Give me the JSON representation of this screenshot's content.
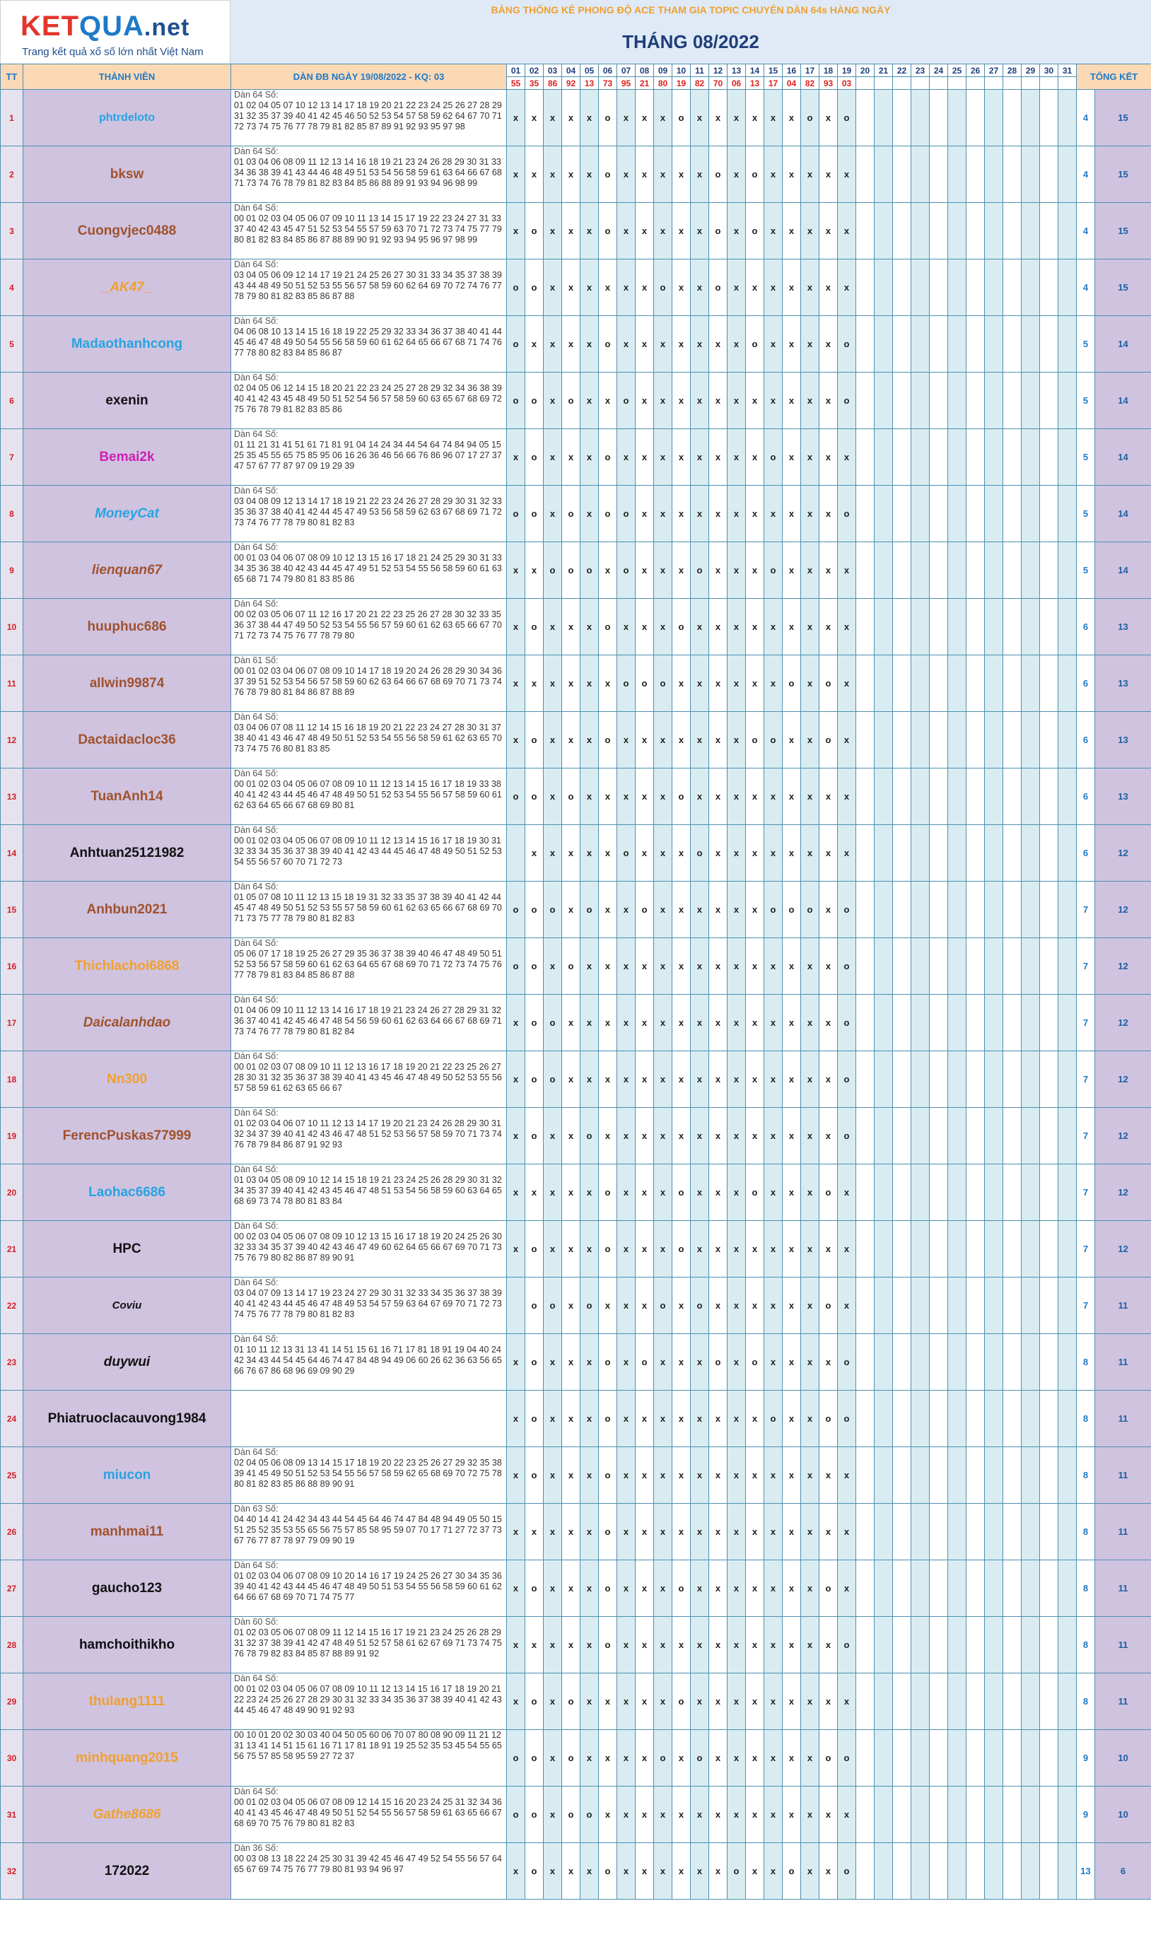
{
  "logo": {
    "brand_k": "KET",
    "brand_rest": "QUA",
    "brand_net": ".net",
    "tagline": "Trang kết quả xổ số lớn nhất Việt Nam"
  },
  "banner": "BẢNG THỐNG KÊ PHONG ĐỘ ACE THAM GIA TOPIC CHUYÊN DÀN 64s HÀNG NGÀY",
  "month_title": "THÁNG 08/2022",
  "headers": {
    "tt": "TT",
    "member": "THÀNH VIÊN",
    "dan": "DÀN ĐB NGÀY 19/08/2022 - KQ: 03",
    "tong_ket": "TỔNG KẾT"
  },
  "days": [
    "01",
    "02",
    "03",
    "04",
    "05",
    "06",
    "07",
    "08",
    "09",
    "10",
    "11",
    "12",
    "13",
    "14",
    "15",
    "16",
    "17",
    "18",
    "19",
    "20",
    "21",
    "22",
    "23",
    "24",
    "25",
    "26",
    "27",
    "28",
    "29",
    "30",
    "31"
  ],
  "results": [
    "55",
    "35",
    "86",
    "92",
    "13",
    "73",
    "95",
    "21",
    "80",
    "19",
    "82",
    "70",
    "06",
    "13",
    "17",
    "04",
    "82",
    "93",
    "03"
  ],
  "rows": [
    {
      "tt": "1",
      "name": "phtrdeloto",
      "color": "#29a3e0",
      "style": "normal",
      "size": "16px",
      "dan_title": "Dàn 64 Số:",
      "dan": "01 02 04 05 07 10 12 13 14 17 18 19 20 21 22 23 24 25 26 27 28 29 31 32 35 37 39 40 41 42 45 46 50 52 53 54 57 58 59 62 64 67 70 71 72 73 74 75 76 77 78 79 81 82 85 87 89 91 92 93 95 97 98",
      "marks": "xxxxxoxxxoxxxxxxoxo",
      "ko": "4",
      "tk": "15"
    },
    {
      "tt": "2",
      "name": "bksw",
      "color": "#a0522d",
      "style": "normal",
      "size": "19px",
      "dan_title": "Dàn 64 Số:",
      "dan": "01 03 04 06 08 09 11 12 13 14 16 18 19 21 23 24 26 28 29 30 31 33 34 36 38 39 41 43 44 46 48 49 51 53 54 56 58 59 61 63 64 66 67 68 71 73 74 76 78 79 81 82 83 84 85 86 88 89 91 93 94 96 98 99",
      "marks": "xxxxxoxxxxxoxoxxxxx",
      "ko": "4",
      "tk": "15"
    },
    {
      "tt": "3",
      "name": "Cuongvjec0488",
      "color": "#a0522d",
      "style": "normal",
      "size": "19px",
      "dan_title": "Dàn 64 Số:",
      "dan": "00 01 02 03 04 05 06 07 09 10 11 13 14 15 17 19 22 23 24 27 31 33 37 40 42 43 45 47 51 52 53 54 55 57 59 63 70 71 72 73 74 75 77 79 80 81 82 83 84 85 86 87 88 89 90 91 92 93 94 95 96 97 98 99",
      "marks": "xoxxxoxxxxxoxoxxxxx",
      "ko": "4",
      "tk": "15"
    },
    {
      "tt": "4",
      "name": "_AK47_",
      "color": "#f0a030",
      "style": "italic",
      "size": "19px",
      "dan_title": "Dàn 64 Số:",
      "dan": "03 04 05 06 09 12 14 17 19 21 24 25 26 27 30 31 33 34 35 37 38 39 43 44 48 49 50 51 52 53 55 56 57 58 59 60 62 64 69 70 72 74 76 77 78 79 80 81 82 83 85 86 87 88",
      "marks": "ooxxxxxxoxxoxxxxxxx",
      "ko": "4",
      "tk": "15"
    },
    {
      "tt": "5",
      "name": "Madaothanhcong",
      "color": "#29a3e0",
      "style": "normal",
      "size": "19px",
      "dan_title": "Dàn 64 Số:",
      "dan": "04 06 08 10 13 14 15 16 18 19 22 25 29 32 33 34 36 37 38 40 41 44 45 46 47 48 49 50 54 55 56 58 59 60 61 62 64 65 66 67 68 71 74 76 77 78 80 82 83 84 85 86 87",
      "marks": "oxxxxoxxxxxxxoxxxxo",
      "ko": "5",
      "tk": "14"
    },
    {
      "tt": "6",
      "name": "exenin",
      "color": "#111111",
      "style": "normal",
      "size": "19px",
      "dan_title": "Dàn 64 Số:",
      "dan": "02 04 05 06 12 14 15 18 20 21 22 23 24 25 27 28 29 32 34 36 38 39 40 41 42 43 45 48 49 50 51 52 54 56 57 58 59 60 63 65 67 68 69 72 75 76 78 79 81 82 83 85 86",
      "marks": "ooxoxxoxxxxxxxxxxxo",
      "ko": "5",
      "tk": "14"
    },
    {
      "tt": "7",
      "name": "Bemai2k",
      "color": "#d020b0",
      "style": "normal",
      "size": "19px",
      "dan_title": "Dàn 64 Số:",
      "dan": "01 11 21 31 41 51 61 71 81 91 04 14 24 34 44 54 64 74 84 94 05 15 25 35 45 55 65 75 85 95 06 16 26 36 46 56 66 76 86 96 07 17 27 37 47 57 67 77 87 97 09 19 29 39",
      "marks": "xoxxxoxxxxxxxxoxxxx",
      "ko": "5",
      "tk": "14"
    },
    {
      "tt": "8",
      "name": "MoneyCat",
      "color": "#29a3e0",
      "style": "italic",
      "size": "19px",
      "dan_title": "Dàn 64 Số:",
      "dan": "03 04 08 09 12 13 14 17 18 19 21 22 23 24 26 27 28 29 30 31 32 33 35 36 37 38 40 41 42 44 45 47 49 53 56 58 59 62 63 67 68 69 71 72 73 74 76 77 78 79 80 81 82 83",
      "marks": "ooxoxooxxxxxxxxxxxo",
      "ko": "5",
      "tk": "14"
    },
    {
      "tt": "9",
      "name": "lienquan67",
      "color": "#a0522d",
      "style": "italic",
      "size": "19px",
      "dan_title": "Dàn 64 Số:",
      "dan": "00 01 03 04 06 07 08 09 10 12 13 15 16 17 18 21 24 25 29 30 31 33 34 35 36 38 40 42 43 44 45 47 49 51 52 53 54 55 56 58 59 60 61 63 65 68 71 74 79 80 81 83 85 86",
      "marks": "xxoooxoxxxoxxxoxxxx",
      "ko": "5",
      "tk": "14"
    },
    {
      "tt": "10",
      "name": "huuphuc686",
      "color": "#a0522d",
      "style": "normal",
      "size": "19px",
      "dan_title": "Dàn 64 Số:",
      "dan": "00 02 03 05 06 07 11 12 16 17 20 21 22 23 25 26 27 28 30 32 33 35 36 37 38 44 47 49 50 52 53 54 55 56 57 59 60 61 62 63 65 66 67 70 71 72 73 74 75 76 77 78 79 80",
      "marks": "xoxxxoxxxoxxxxxxxxx",
      "ko": "6",
      "tk": "13"
    },
    {
      "tt": "11",
      "name": "allwin99874",
      "color": "#a0522d",
      "style": "normal",
      "size": "19px",
      "dan_title": "Dàn 61 Số:",
      "dan": "00 01 02 03 04 06 07 08 09 10 14 17 18 19 20 24 26 28 29 30 34 36 37 39 51 52 53 54 56 57 58 59 60 62 63 64 66 67 68 69 70 71 73 74 76 78 79 80 81 84 86 87 88 89",
      "marks": "xxxxxxoooxxxxxxoxox",
      "ko": "6",
      "tk": "13"
    },
    {
      "tt": "12",
      "name": "Dactaidacloc36",
      "color": "#a0522d",
      "style": "normal",
      "size": "19px",
      "dan_title": "Dàn 64 Số:",
      "dan": "03 04 06 07 08 11 12 14 15 16 18 19 20 21 22 23 24 27 28 30 31 37 38 40 41 43 46 47 48 49 50 51 52 53 54 55 56 58 59 61 62 63 65 70 73 74 75 76 80 81 83 85",
      "marks": "xoxxxoxxxxxxxooxxox",
      "ko": "6",
      "tk": "13"
    },
    {
      "tt": "13",
      "name": "TuanAnh14",
      "color": "#a0522d",
      "style": "normal",
      "size": "19px",
      "dan_title": "Dàn 64 Số:",
      "dan": "00 01 02 03 04 05 06 07 08 09 10 11 12 13 14 15 16 17 18 19 33 38 40 41 42 43 44 45 46 47 48 49 50 51 52 53 54 55 56 57 58 59 60 61 62 63 64 65 66 67 68 69 80 81",
      "marks": "ooxoxxxxxoxxxxxxxxx",
      "ko": "6",
      "tk": "13"
    },
    {
      "tt": "14",
      "name": "Anhtuan25121982",
      "color": "#111111",
      "style": "normal",
      "size": "19px",
      "dan_title": "Dàn 64 Số:",
      "dan": "00 01 02 03 04 05 06 07 08 09 10 11 12 13 14 15 16 17 18 19 30 31 32 33 34 35 36 37 38 39 40 41 42 43 44 45 46 47 48 49 50 51 52 53 54 55 56 57 60 70 71 72 73",
      "marks": " xxxxxoxxxoxxxxxxxx",
      "ko": "6",
      "tk": "12"
    },
    {
      "tt": "15",
      "name": "Anhbun2021",
      "color": "#a0522d",
      "style": "normal",
      "size": "19px",
      "dan_title": "Dàn 64 Số:",
      "dan": "01 05 07 08 10 11 12 13 15 18 19 31 32 33 35 37 38 39 40 41 42 44 45 47 48 49 50 51 52 53 55 57 58 59 60 61 62 63 65 66 67 68 69 70 71 73 75 77 78 79 80 81 82 83",
      "marks": "oooxoxxoxxxxxxoooxo",
      "ko": "7",
      "tk": "12"
    },
    {
      "tt": "16",
      "name": "Thichlachoi6868",
      "color": "#f0a030",
      "style": "normal",
      "size": "19px",
      "dan_title": "Dàn 64 Số:",
      "dan": "05 06 07 17 18 19 25 26 27 29 35 36 37 38 39 40 46 47 48 49 50 51 52 53 56 57 58 59 60 61 62 63 64 65 67 68 69 70 71 72 73 74 75 76 77 78 79 81 83 84 85 86 87 88",
      "marks": "ooxoxxxxxxxxxxxxxxo",
      "ko": "7",
      "tk": "12"
    },
    {
      "tt": "17",
      "name": "Daicalanhdao",
      "color": "#a0522d",
      "style": "italic",
      "size": "19px",
      "dan_title": "Dàn 64 Số:",
      "dan": "01 04 06 09 10 11 12 13 14 16 17 18 19 21 23 24 26 27 28 29 31 32 36 37 40 41 42 45 46 47 48 54 56 59 60 61 62 63 64 66 67 68 69 71 73 74 76 77 78 79 80 81 82 84",
      "marks": "xooxxxxxxxxxxxxxxxo",
      "ko": "7",
      "tk": "12"
    },
    {
      "tt": "18",
      "name": "Nn300",
      "color": "#f0a030",
      "style": "normal",
      "size": "19px",
      "dan_title": "Dàn 64 Số:",
      "dan": "00 01 02 03 07 08 09 10 11 12 13 16 17 18 19 20 21 22 23 25 26 27 28 30 31 32 35 36 37 38 39 40 41 43 45 46 47 48 49 50 52 53 55 56 57 58 59 61 62 63 65 66 67",
      "marks": "xooxxxxxxxxxxxxxxxo",
      "ko": "7",
      "tk": "12"
    },
    {
      "tt": "19",
      "name": "FerencPuskas77999",
      "color": "#a0522d",
      "style": "normal",
      "size": "19px",
      "dan_title": "Dàn 64 Số:",
      "dan": "01 02 03 04 06 07 10 11 12 13 14 17 19 20 21 23 24 26 28 29 30 31 32 34 37 39 40 41 42 43 46 47 48 51 52 53 56 57 58 59 70 71 73 74 76 78 79 84 86 87 91 92 93",
      "marks": "xoxxoxxxxxxxxxxxxxo",
      "ko": "7",
      "tk": "12"
    },
    {
      "tt": "20",
      "name": "Laohac6686",
      "color": "#29a3e0",
      "style": "normal",
      "size": "19px",
      "dan_title": "Dàn 64 Số:",
      "dan": "01 03 04 05 08 09 10 12 14 15 18 19 21 23 24 25 26 28 29 30 31 32 34 35 37 39 40 41 42 43 45 46 47 48 51 53 54 56 58 59 60 63 64 65 68 69 73 74 78 80 81 83 84",
      "marks": "xxxxxoxxxoxxxoxxxox",
      "ko": "7",
      "tk": "12"
    },
    {
      "tt": "21",
      "name": "HPC",
      "color": "#111111",
      "style": "normal",
      "size": "19px",
      "dan_title": "Dàn 64 Số:",
      "dan": "00 02 03 04 05 06 07 08 09 10 12 13 15 16 17 18 19 20 24 25 26 30 32 33 34 35 37 39 40 42 43 46 47 49 60 62 64 65 66 67 69 70 71 73 75 76 79 80 82 86 87 89 90 91",
      "marks": "xoxxxoxxxoxxxxxxxxx",
      "ko": "7",
      "tk": "12"
    },
    {
      "tt": "22",
      "name": "Coviu",
      "color": "#111111",
      "style": "italic",
      "size": "15px",
      "dan_title": "Dàn 64 Số:",
      "dan": "03 04 07 09 13 14 17 19 23 24 27 29 30 31 32 33 34 35 36 37 38 39 40 41 42 43 44 45 46 47 48 49 53 54 57 59 63 64 67 69 70 71 72 73 74 75 76 77 78 79 80 81 82 83",
      "marks": " ooxoxxxoxoxxxxxxox",
      "ko": "7",
      "tk": "11"
    },
    {
      "tt": "23",
      "name": "duywui",
      "color": "#111111",
      "style": "italic",
      "size": "19px",
      "dan_title": "Dàn 64 Số:",
      "dan": "01 10 11 12 13 31 13 41 14 51 15 61 16 71 17 81 18 91 19 04 40 24 42 34 43 44 54 45 64 46 74 47 84 48 94 49 06 60 26 62 36 63 56 65 66 76 67 86 68 96 69 09 90 29",
      "marks": "xoxxxoxoxxxoxoxxxxo",
      "ko": "8",
      "tk": "11"
    },
    {
      "tt": "24",
      "name": "Phiatruoclacauvong1984",
      "color": "#111111",
      "style": "normal",
      "size": "19px",
      "dan_title": "",
      "dan": "",
      "marks": "xoxxxoxxxxxxxxoxxoo",
      "ko": "8",
      "tk": "11"
    },
    {
      "tt": "25",
      "name": "miucon",
      "color": "#29a3e0",
      "style": "normal",
      "size": "19px",
      "dan_title": "Dàn 64 Số:",
      "dan": "02 04 05 06 08 09 13 14 15 17 18 19 20 22 23 25 26 27 29 32 35 38 39 41 45 49 50 51 52 53 54 55 56 57 58 59 62 65 68 69 70 72 75 78 80 81 82 83 85 86 88 89 90 91",
      "marks": "xoxxxoxxxxxxxxxxxxx",
      "ko": "8",
      "tk": "11"
    },
    {
      "tt": "26",
      "name": "manhmai11",
      "color": "#a0522d",
      "style": "normal",
      "size": "19px",
      "dan_title": "Dàn 63 Số:",
      "dan": "04 40 14 41 24 42 34 43 44 54 45 64 46 74 47 84 48 94 49 05 50 15 51 25 52 35 53 55 65 56 75 57 85 58 95 59 07 70 17 71 27 72 37 73 67 76 77 87 78 97 79 09 90 19",
      "marks": "xxxxxoxxxxxxxxxxxxx",
      "ko": "8",
      "tk": "11"
    },
    {
      "tt": "27",
      "name": "gaucho123",
      "color": "#111111",
      "style": "normal",
      "size": "19px",
      "dan_title": "Dàn 64 Số:",
      "dan": "01 02 03 04 06 07 08 09 10 20 14 16 17 19 24 25 26 27 30 34 35 36 39 40 41 42 43 44 45 46 47 48 49 50 51 53 54 55 56 58 59 60 61 62 64 66 67 68 69 70 71 74 75 77",
      "marks": "xoxxxoxxxoxxxxxxxox",
      "ko": "8",
      "tk": "11"
    },
    {
      "tt": "28",
      "name": "hamchoithikho",
      "color": "#111111",
      "style": "normal",
      "size": "19px",
      "dan_title": "Dàn 60 Số:",
      "dan": "01 02 03 05 06 07 08 09 11 12 14 15 16 17 19 21 23 24 25 26 28 29 31 32 37 38 39 41 42 47 48 49 51 52 57 58 61 62 67 69 71 73 74 75 76 78 79 82 83 84 85 87 88 89 91 92",
      "marks": "xxxxxoxxxxxxxxxxxxo",
      "ko": "8",
      "tk": "11"
    },
    {
      "tt": "29",
      "name": "thulang1111",
      "color": "#f0a030",
      "style": "normal",
      "size": "19px",
      "dan_title": "Dàn 64 Số:",
      "dan": "00 01 02 03 04 05 06 07 08 09 10 11 12 13 14 15 16 17 18 19 20 21 22 23 24 25 26 27 28 29 30 31 32 33 34 35 36 37 38 39 40 41 42 43 44 45 46 47 48 49 90 91 92 93",
      "marks": "xoxoxxxxxoxxxxxxxxx",
      "ko": "8",
      "tk": "11"
    },
    {
      "tt": "30",
      "name": "minhquang2015",
      "color": "#f0a030",
      "style": "normal",
      "size": "19px",
      "dan_title": "",
      "dan": "00 10 01 20 02 30 03 40 04 50 05 60 06 70 07 80 08 90 09 11 21 12 31 13 41 14 51 15 61 16 71 17 81 18 91 19 25 52 35 53 45 54 55 65 56 75 57 85 58 95 59 27 72 37",
      "marks": "ooxoxxxxoxoxxxxxxoo",
      "ko": "9",
      "tk": "10"
    },
    {
      "tt": "31",
      "name": "Gathe8686",
      "color": "#f0a030",
      "style": "italic",
      "size": "19px",
      "dan_title": "Dàn 64 Số:",
      "dan": "00 01 02 03 04 05 06 07 08 09 12 14 15 16 20 23 24 25 31 32 34 36 40 41 43 45 46 47 48 49 50 51 52 54 55 56 57 58 59 61 63 65 66 67 68 69 70 75 76 79 80 81 82 83",
      "marks": "ooxooxxxxxxxxxxxxxx",
      "ko": "9",
      "tk": "10"
    },
    {
      "tt": "32",
      "name": "172022",
      "color": "#111111",
      "style": "normal",
      "size": "19px",
      "dan_title": "Dàn 36 Số:",
      "dan": "00 03 08 13 18 22 24 25 30 31 39 42 45 46 47 49 52 54 55 56 57 64 65 67 69 74 75 76 77 79 80 81 93 94 96 97",
      "marks": "xoxxxoxxxxxxoxxoxxo",
      "ko": "13",
      "tk": "6"
    }
  ]
}
